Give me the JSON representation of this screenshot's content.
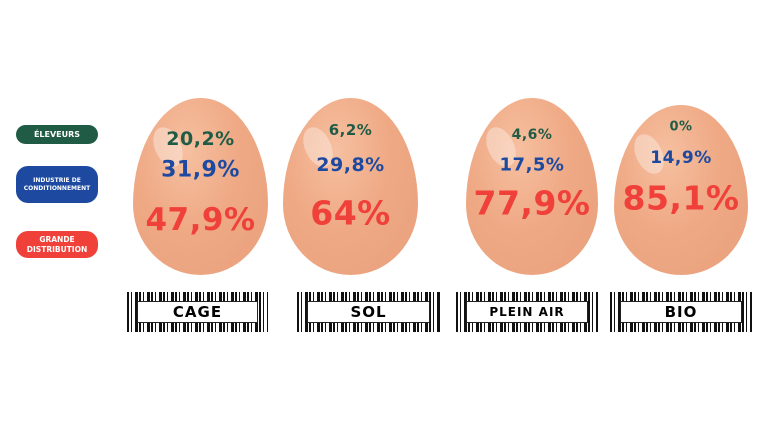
{
  "legend": [
    {
      "label": "ÉLEVEURS"
    },
    {
      "label": "INDUSTRIE DE CONDITIONNEMENT"
    },
    {
      "label": "GRANDE DISTRIBUTION"
    }
  ],
  "eggs": [
    {
      "label": "CAGE",
      "eleveurs": "20,2%",
      "industrie": "31,9%",
      "distribution": "47,9%"
    },
    {
      "label": "SOL",
      "eleveurs": "6,2%",
      "industrie": "29,8%",
      "distribution": "64%"
    },
    {
      "label": "PLEIN AIR",
      "eleveurs": "4,6%",
      "industrie": "17,5%",
      "distribution": "77,9%"
    },
    {
      "label": "BIO",
      "eleveurs": "0%",
      "industrie": "14,9%",
      "distribution": "85,1%"
    }
  ]
}
